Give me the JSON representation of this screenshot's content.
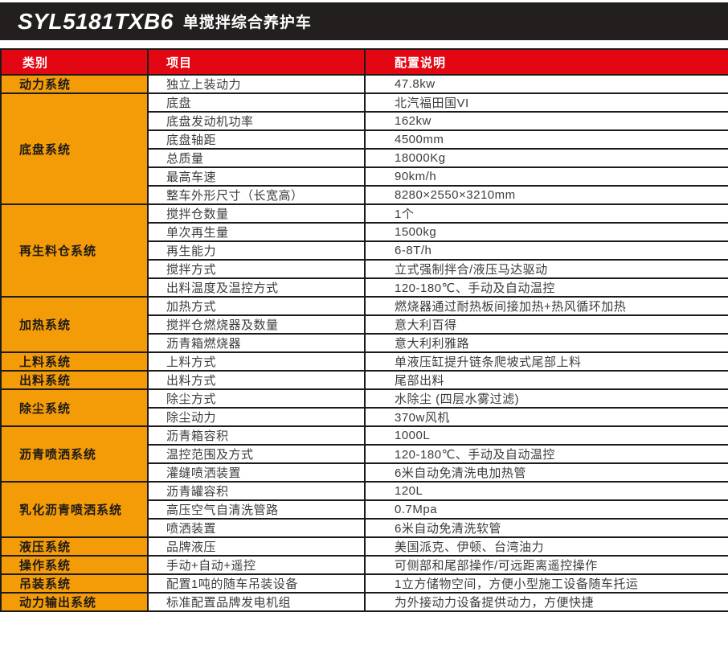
{
  "colors": {
    "red": "#e30613",
    "orange": "#f49c07",
    "title_bar_bg": "#231f1e",
    "border": "#1d1b1a",
    "body_text": "#3c3c3c"
  },
  "title_bar": {
    "model": "SYL5181TXB6",
    "subtitle": "单搅拌综合养护车"
  },
  "table": {
    "header": {
      "category": "类别",
      "item": "项目",
      "spec": "配置说明"
    },
    "sections": [
      {
        "category": "动力系统",
        "rows": [
          {
            "item": "独立上装动力",
            "value": "47.8kw"
          }
        ]
      },
      {
        "category": "底盘系统",
        "rows": [
          {
            "item": "底盘",
            "value": "北汽福田国VI"
          },
          {
            "item": "底盘发动机功率",
            "value": "162kw"
          },
          {
            "item": "底盘轴距",
            "value": "4500mm"
          },
          {
            "item": "总质量",
            "value": "18000Kg"
          },
          {
            "item": "最高车速",
            "value": "90km/h"
          },
          {
            "item": "整车外形尺寸（长宽高）",
            "value": "8280×2550×3210mm"
          }
        ]
      },
      {
        "category": "再生料仓系统",
        "rows": [
          {
            "item": "搅拌仓数量",
            "value": "1个"
          },
          {
            "item": "单次再生量",
            "value": "1500kg"
          },
          {
            "item": "再生能力",
            "value": "6-8T/h"
          },
          {
            "item": "搅拌方式",
            "value": "立式强制拌合/液压马达驱动"
          },
          {
            "item": "出料温度及温控方式",
            "value": "120-180℃、手动及自动温控"
          }
        ]
      },
      {
        "category": "加热系统",
        "rows": [
          {
            "item": "加热方式",
            "value": "燃烧器通过耐热板间接加热+热风循环加热"
          },
          {
            "item": "搅拌仓燃烧器及数量",
            "value": "意大利百得"
          },
          {
            "item": "沥青箱燃烧器",
            "value": "意大利利雅路"
          }
        ]
      },
      {
        "category": "上料系统",
        "rows": [
          {
            "item": "上料方式",
            "value": "单液压缸提升链条爬坡式尾部上料"
          }
        ]
      },
      {
        "category": "出料系统",
        "rows": [
          {
            "item": "出料方式",
            "value": "尾部出料"
          }
        ]
      },
      {
        "category": "除尘系统",
        "rows": [
          {
            "item": "除尘方式",
            "value": "水除尘 (四层水雾过滤)"
          },
          {
            "item": "除尘动力",
            "value": "370w风机"
          }
        ]
      },
      {
        "category": "沥青喷洒系统",
        "rows": [
          {
            "item": "沥青箱容积",
            "value": "1000L"
          },
          {
            "item": "温控范围及方式",
            "value": "120-180℃、手动及自动温控"
          },
          {
            "item": "灌缝喷洒装置",
            "value": "6米自动免清洗电加热管"
          }
        ]
      },
      {
        "category": "乳化沥青喷洒系统",
        "rows": [
          {
            "item": "沥青罐容积",
            "value": "120L"
          },
          {
            "item": "高压空气自清洗管路",
            "value": "0.7Mpa"
          },
          {
            "item": "喷洒装置",
            "value": "6米自动免清洗软管"
          }
        ]
      },
      {
        "category": "液压系统",
        "rows": [
          {
            "item": "品牌液压",
            "value": "美国派克、伊顿、台湾油力"
          }
        ]
      },
      {
        "category": "操作系统",
        "rows": [
          {
            "item": "手动+自动+遥控",
            "value": "可侧部和尾部操作/可远距离遥控操作"
          }
        ]
      },
      {
        "category": "吊装系统",
        "rows": [
          {
            "item": "配置1吨的随车吊装设备",
            "value": "1立方储物空间，方便小型施工设备随车托运"
          }
        ]
      },
      {
        "category": "动力输出系统",
        "rows": [
          {
            "item": "标准配置品牌发电机组",
            "value": "为外接动力设备提供动力，方便快捷"
          }
        ]
      }
    ]
  }
}
